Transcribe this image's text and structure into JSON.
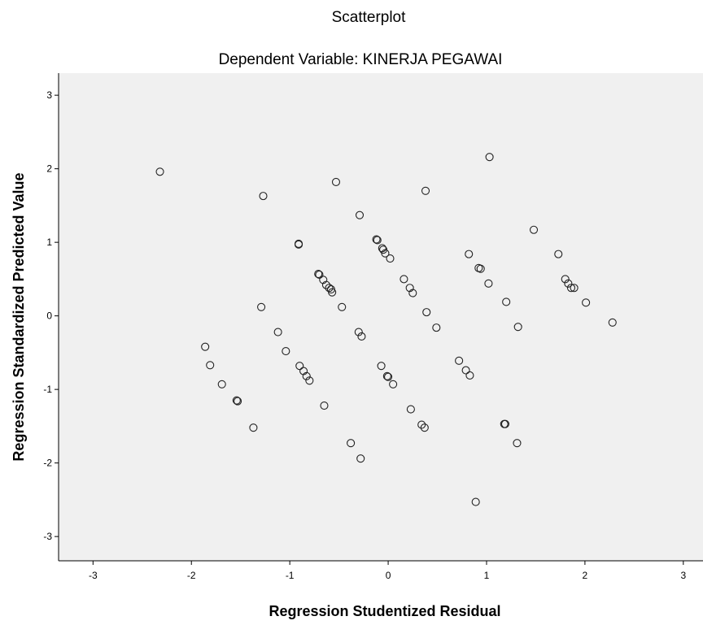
{
  "chart_data": {
    "type": "scatter",
    "title": "Scatterplot",
    "subtitle": "Dependent Variable: KINERJA PEGAWAI",
    "xlabel": "Regression Studentized Residual",
    "ylabel": "Regression Standardized Predicted Value",
    "xlim": [
      -3.35,
      3.2
    ],
    "ylim": [
      -3.33,
      3.3
    ],
    "x_ticks": [
      -3,
      -2,
      -1,
      0,
      1,
      2,
      3
    ],
    "y_ticks": [
      -3,
      -2,
      -1,
      0,
      1,
      2,
      3
    ],
    "grid": false,
    "plot_background": "#f0f0f0",
    "marker": "open-circle",
    "points": [
      {
        "x": -2.32,
        "y": 1.96
      },
      {
        "x": -1.27,
        "y": 1.63
      },
      {
        "x": -0.53,
        "y": 1.82
      },
      {
        "x": 1.03,
        "y": 2.16
      },
      {
        "x": 0.38,
        "y": 1.7
      },
      {
        "x": -0.29,
        "y": 1.37
      },
      {
        "x": 1.48,
        "y": 1.17
      },
      {
        "x": -0.91,
        "y": 0.97
      },
      {
        "x": -0.91,
        "y": 0.98
      },
      {
        "x": -0.12,
        "y": 1.04
      },
      {
        "x": -0.11,
        "y": 1.03
      },
      {
        "x": -0.06,
        "y": 0.92
      },
      {
        "x": -0.05,
        "y": 0.9
      },
      {
        "x": -0.03,
        "y": 0.85
      },
      {
        "x": 0.02,
        "y": 0.78
      },
      {
        "x": 0.82,
        "y": 0.84
      },
      {
        "x": 0.92,
        "y": 0.65
      },
      {
        "x": 0.94,
        "y": 0.64
      },
      {
        "x": 1.73,
        "y": 0.84
      },
      {
        "x": -0.71,
        "y": 0.57
      },
      {
        "x": -0.7,
        "y": 0.56
      },
      {
        "x": -0.66,
        "y": 0.49
      },
      {
        "x": -0.63,
        "y": 0.42
      },
      {
        "x": -0.6,
        "y": 0.38
      },
      {
        "x": -0.58,
        "y": 0.36
      },
      {
        "x": -0.57,
        "y": 0.32
      },
      {
        "x": 0.16,
        "y": 0.5
      },
      {
        "x": 0.22,
        "y": 0.38
      },
      {
        "x": 0.25,
        "y": 0.31
      },
      {
        "x": 1.02,
        "y": 0.44
      },
      {
        "x": 1.8,
        "y": 0.5
      },
      {
        "x": 1.83,
        "y": 0.44
      },
      {
        "x": 1.86,
        "y": 0.38
      },
      {
        "x": 1.89,
        "y": 0.38
      },
      {
        "x": -1.29,
        "y": 0.12
      },
      {
        "x": -0.47,
        "y": 0.12
      },
      {
        "x": 1.2,
        "y": 0.19
      },
      {
        "x": 2.01,
        "y": 0.18
      },
      {
        "x": 0.39,
        "y": 0.05
      },
      {
        "x": 0.49,
        "y": -0.16
      },
      {
        "x": 1.32,
        "y": -0.15
      },
      {
        "x": 2.28,
        "y": -0.09
      },
      {
        "x": -1.12,
        "y": -0.22
      },
      {
        "x": -0.3,
        "y": -0.22
      },
      {
        "x": -0.27,
        "y": -0.28
      },
      {
        "x": -1.86,
        "y": -0.42
      },
      {
        "x": -1.04,
        "y": -0.48
      },
      {
        "x": -1.81,
        "y": -0.67
      },
      {
        "x": -0.9,
        "y": -0.68
      },
      {
        "x": -0.86,
        "y": -0.75
      },
      {
        "x": -0.83,
        "y": -0.82
      },
      {
        "x": -0.8,
        "y": -0.88
      },
      {
        "x": -0.07,
        "y": -0.68
      },
      {
        "x": -0.01,
        "y": -0.82
      },
      {
        "x": 0.0,
        "y": -0.83
      },
      {
        "x": 0.05,
        "y": -0.93
      },
      {
        "x": 0.72,
        "y": -0.61
      },
      {
        "x": 0.79,
        "y": -0.74
      },
      {
        "x": 0.83,
        "y": -0.81
      },
      {
        "x": -1.69,
        "y": -0.93
      },
      {
        "x": -1.53,
        "y": -1.16
      },
      {
        "x": -1.54,
        "y": -1.15
      },
      {
        "x": -0.65,
        "y": -1.22
      },
      {
        "x": 0.23,
        "y": -1.27
      },
      {
        "x": 0.34,
        "y": -1.48
      },
      {
        "x": 0.37,
        "y": -1.52
      },
      {
        "x": 1.18,
        "y": -1.47
      },
      {
        "x": 1.19,
        "y": -1.47
      },
      {
        "x": -1.37,
        "y": -1.52
      },
      {
        "x": -0.38,
        "y": -1.73
      },
      {
        "x": 1.31,
        "y": -1.73
      },
      {
        "x": -0.28,
        "y": -1.94
      },
      {
        "x": 0.89,
        "y": -2.53
      }
    ]
  }
}
